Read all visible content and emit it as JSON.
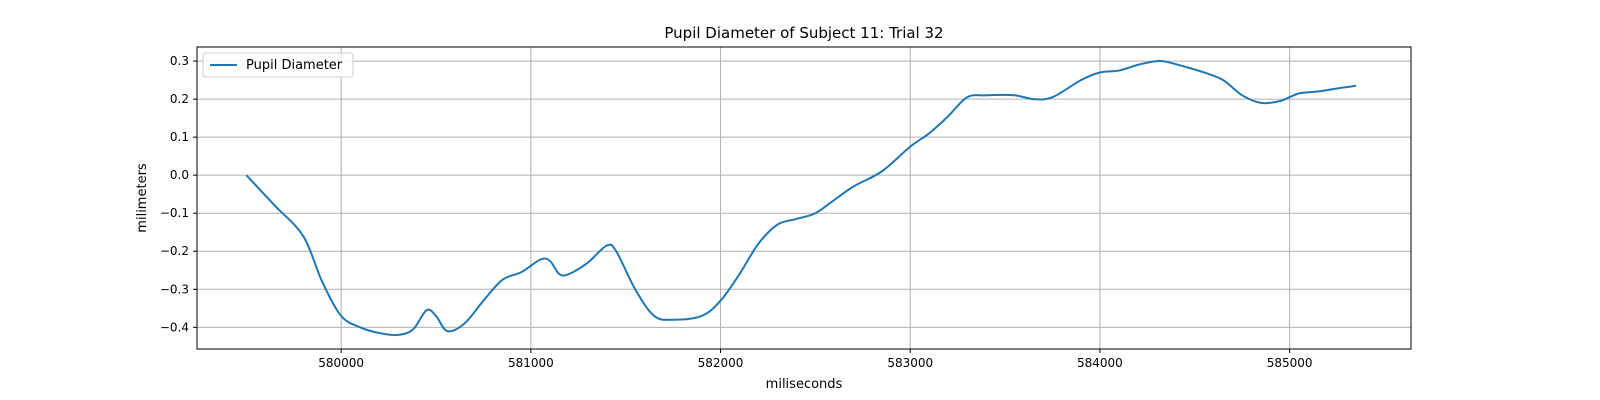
{
  "chart_data": {
    "type": "line",
    "title": "Pupil Diameter of Subject 11: Trial 32",
    "xlabel": "miliseconds",
    "ylabel": "milimeters",
    "xlim": [
      579240,
      585640
    ],
    "ylim": [
      -0.457,
      0.337
    ],
    "x_ticks": [
      580000,
      581000,
      582000,
      583000,
      584000,
      585000
    ],
    "y_ticks": [
      0.3,
      0.2,
      0.1,
      0.0,
      -0.1,
      -0.2,
      -0.3,
      -0.4
    ],
    "x_tick_labels": [
      "580000",
      "581000",
      "582000",
      "583000",
      "584000",
      "585000"
    ],
    "y_tick_labels": [
      "0.3",
      "0.2",
      "0.1",
      "0.0",
      "−0.1",
      "−0.2",
      "−0.3",
      "−0.4"
    ],
    "grid": true,
    "legend_position": "top-left",
    "series": [
      {
        "name": "Pupil Diameter",
        "color": "#1f77b4",
        "x": [
          579500,
          579650,
          579800,
          579900,
          580000,
          580100,
          580200,
          580300,
          580380,
          580450,
          580500,
          580560,
          580650,
          580750,
          580850,
          580950,
          581050,
          581100,
          581150,
          581200,
          581300,
          581400,
          581450,
          581550,
          581650,
          581750,
          581900,
          582000,
          582100,
          582200,
          582300,
          582400,
          582500,
          582600,
          582700,
          582850,
          583000,
          583100,
          583200,
          583300,
          583400,
          583550,
          583650,
          583750,
          583900,
          584000,
          584100,
          584200,
          584300,
          584350,
          584450,
          584550,
          584650,
          584750,
          584850,
          584950,
          585050,
          585150,
          585250,
          585350
        ],
        "y": [
          0.0,
          -0.08,
          -0.16,
          -0.28,
          -0.37,
          -0.4,
          -0.415,
          -0.42,
          -0.405,
          -0.355,
          -0.37,
          -0.41,
          -0.39,
          -0.33,
          -0.275,
          -0.255,
          -0.222,
          -0.225,
          -0.26,
          -0.26,
          -0.23,
          -0.185,
          -0.2,
          -0.3,
          -0.37,
          -0.38,
          -0.37,
          -0.33,
          -0.26,
          -0.18,
          -0.13,
          -0.115,
          -0.1,
          -0.065,
          -0.03,
          0.01,
          0.075,
          0.11,
          0.155,
          0.205,
          0.21,
          0.21,
          0.2,
          0.205,
          0.25,
          0.27,
          0.275,
          0.29,
          0.3,
          0.298,
          0.285,
          0.27,
          0.25,
          0.21,
          0.19,
          0.195,
          0.215,
          0.22,
          0.228,
          0.235
        ]
      }
    ]
  }
}
